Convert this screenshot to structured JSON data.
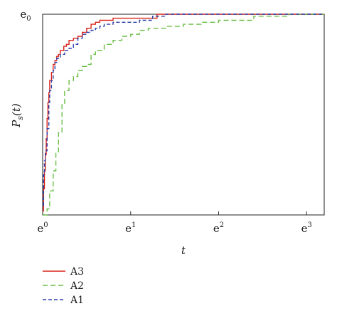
{
  "chart_data": {
    "type": "line",
    "line_style": "step",
    "x_scale": "exp-labeled",
    "xlabel": "t",
    "ylabel": "P_s(t)",
    "ylabel_parts": {
      "base": "P",
      "sub": "s",
      "arg": "(t)"
    },
    "xlim": [
      0,
      3.2
    ],
    "ylim": [
      0,
      1
    ],
    "x_ticks": [
      {
        "value": 0,
        "base": "e",
        "exp": "0"
      },
      {
        "value": 1,
        "base": "e",
        "exp": "1"
      },
      {
        "value": 2,
        "base": "e",
        "exp": "2"
      },
      {
        "value": 3,
        "base": "e",
        "exp": "3"
      }
    ],
    "y_ticks": [
      {
        "value": 1,
        "base": "e",
        "sub": "0"
      }
    ],
    "grid": false,
    "legend_position": "bottom-left",
    "series": [
      {
        "name": "A3",
        "color": "#d9241b",
        "dash": "solid",
        "x": [
          0,
          0.01,
          0.02,
          0.03,
          0.04,
          0.05,
          0.06,
          0.07,
          0.08,
          0.1,
          0.12,
          0.14,
          0.16,
          0.18,
          0.2,
          0.24,
          0.27,
          0.3,
          0.35,
          0.4,
          0.45,
          0.5,
          0.55,
          0.6,
          0.65,
          0.7,
          0.8,
          0.9,
          1.0,
          1.3,
          3.2
        ],
        "y": [
          0.02,
          0.13,
          0.22,
          0.3,
          0.38,
          0.48,
          0.56,
          0.61,
          0.67,
          0.71,
          0.75,
          0.77,
          0.79,
          0.8,
          0.82,
          0.84,
          0.85,
          0.87,
          0.88,
          0.89,
          0.91,
          0.93,
          0.95,
          0.96,
          0.97,
          0.97,
          0.98,
          0.98,
          0.98,
          1.0,
          1.0
        ]
      },
      {
        "name": "A2",
        "color": "#6abf45",
        "dash": "7,4",
        "x": [
          0,
          0.05,
          0.08,
          0.12,
          0.15,
          0.18,
          0.22,
          0.25,
          0.3,
          0.35,
          0.4,
          0.45,
          0.5,
          0.55,
          0.6,
          0.7,
          0.8,
          0.9,
          1.0,
          1.1,
          1.2,
          1.4,
          1.6,
          1.8,
          2.0,
          2.4,
          2.8,
          3.2
        ],
        "y": [
          0,
          0.03,
          0.12,
          0.22,
          0.31,
          0.41,
          0.55,
          0.62,
          0.67,
          0.69,
          0.72,
          0.74,
          0.75,
          0.8,
          0.82,
          0.85,
          0.87,
          0.89,
          0.9,
          0.92,
          0.93,
          0.94,
          0.95,
          0.96,
          0.97,
          0.99,
          1.0,
          1.0
        ]
      },
      {
        "name": "A1",
        "color": "#2a3fa8",
        "dash": "5,3",
        "x": [
          0,
          0.01,
          0.02,
          0.03,
          0.05,
          0.07,
          0.08,
          0.1,
          0.12,
          0.14,
          0.16,
          0.2,
          0.25,
          0.3,
          0.35,
          0.4,
          0.45,
          0.5,
          0.55,
          0.6,
          0.65,
          0.7,
          0.8,
          0.9,
          1.0,
          1.1,
          1.2,
          1.25,
          1.4,
          3.2
        ],
        "y": [
          0.05,
          0.2,
          0.27,
          0.32,
          0.43,
          0.56,
          0.62,
          0.67,
          0.72,
          0.76,
          0.78,
          0.8,
          0.82,
          0.83,
          0.85,
          0.88,
          0.9,
          0.91,
          0.92,
          0.93,
          0.94,
          0.95,
          0.96,
          0.96,
          0.96,
          0.97,
          0.97,
          0.99,
          1.0,
          1.0
        ]
      }
    ]
  }
}
